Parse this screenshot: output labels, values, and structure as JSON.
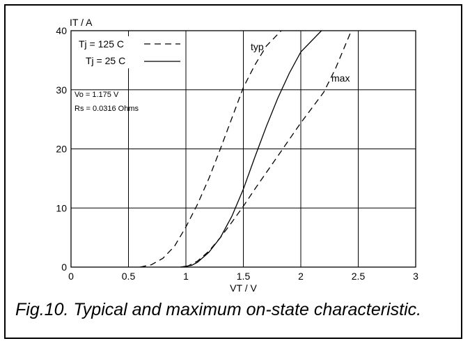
{
  "caption": "Fig.10.  Typical and maximum on-state characteristic.",
  "chart_data": {
    "type": "line",
    "title": "",
    "xlabel": "VT / V",
    "ylabel": "IT / A",
    "xlim": [
      0,
      3
    ],
    "ylim": [
      0,
      40
    ],
    "x_ticks": [
      "0",
      "0.5",
      "1",
      "1.5",
      "2",
      "2.5",
      "3"
    ],
    "y_ticks": [
      "0",
      "10",
      "20",
      "30",
      "40"
    ],
    "grid": true,
    "legend": {
      "placement": "top-left",
      "entries": [
        {
          "label": "Tj = 125 C",
          "style": "dashed"
        },
        {
          "label": "Tj = 25 C",
          "style": "solid"
        }
      ]
    },
    "annotations": [
      "Vo = 1.175 V",
      "Rs = 0.0316 Ohms",
      "typ",
      "max"
    ],
    "series": [
      {
        "style": "dashed",
        "group": "typ",
        "points": [
          [
            0.6,
            0
          ],
          [
            0.7,
            0.4
          ],
          [
            0.8,
            1.5
          ],
          [
            0.9,
            3.5
          ],
          [
            1.0,
            6.8
          ],
          [
            1.1,
            10.6
          ],
          [
            1.2,
            15
          ],
          [
            1.3,
            20
          ],
          [
            1.4,
            25.2
          ],
          [
            1.5,
            30.4
          ],
          [
            1.6,
            34.2
          ],
          [
            1.7,
            37.4
          ],
          [
            1.83,
            40
          ]
        ]
      },
      {
        "style": "solid",
        "group": "typ",
        "points": [
          [
            0.95,
            0
          ],
          [
            1.05,
            0.3
          ],
          [
            1.1,
            0.8
          ],
          [
            1.2,
            2.5
          ],
          [
            1.3,
            5.0
          ],
          [
            1.4,
            8.6
          ],
          [
            1.5,
            13.2
          ],
          [
            1.6,
            18.6
          ],
          [
            1.7,
            23.8
          ],
          [
            1.8,
            28.6
          ],
          [
            1.9,
            32.8
          ],
          [
            2.0,
            36.4
          ],
          [
            2.18,
            40
          ]
        ]
      },
      {
        "style": "dashed",
        "group": "max",
        "points": [
          [
            1.0,
            0
          ],
          [
            1.1,
            1.0
          ],
          [
            1.2,
            2.7
          ],
          [
            1.3,
            5.0
          ],
          [
            1.4,
            7.6
          ],
          [
            1.5,
            10.3
          ],
          [
            1.6,
            13.2
          ],
          [
            1.7,
            16.0
          ],
          [
            1.8,
            18.8
          ],
          [
            1.9,
            21.6
          ],
          [
            2.0,
            24.4
          ],
          [
            2.1,
            27.0
          ],
          [
            2.2,
            29.6
          ],
          [
            2.3,
            33.5
          ],
          [
            2.44,
            40
          ]
        ]
      }
    ]
  }
}
